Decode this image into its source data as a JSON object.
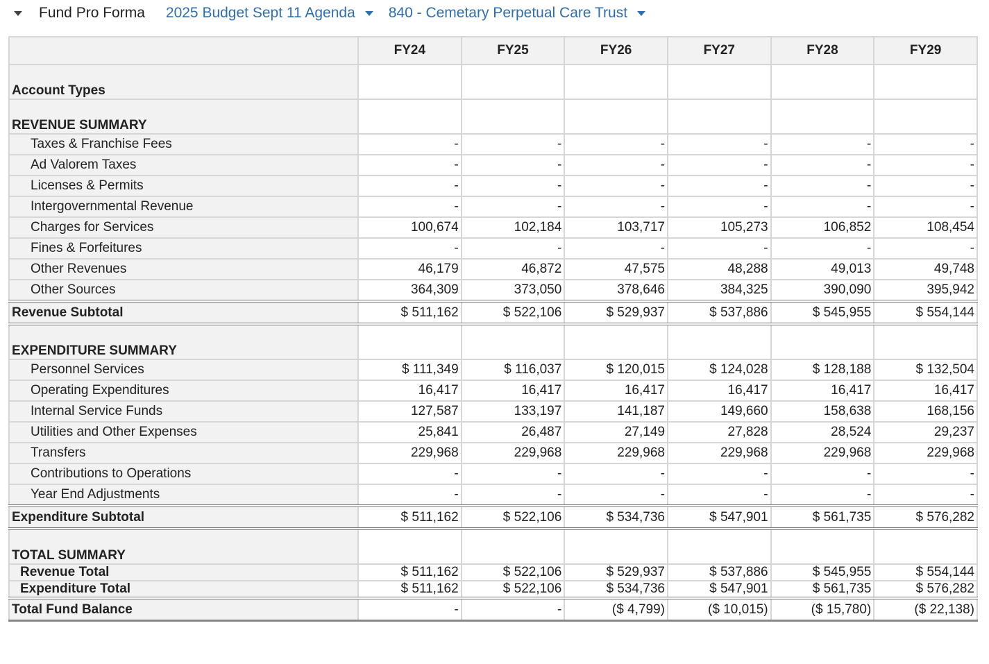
{
  "header": {
    "title": "Fund Pro Forma",
    "scenario": "2025 Budget Sept 11 Agenda",
    "fund": "840 - Cemetary Perpetual Care Trust",
    "accent_color": "#2f6fb0"
  },
  "table": {
    "columns": [
      "FY24",
      "FY25",
      "FY26",
      "FY27",
      "FY28",
      "FY29"
    ],
    "rows": [
      {
        "kind": "sec",
        "label": "Account Types",
        "values": [
          "",
          "",
          "",
          "",
          "",
          ""
        ]
      },
      {
        "kind": "sec",
        "label": "REVENUE SUMMARY",
        "values": [
          "",
          "",
          "",
          "",
          "",
          ""
        ]
      },
      {
        "kind": "item",
        "label": "Taxes & Franchise Fees",
        "values": [
          "-",
          "-",
          "-",
          "-",
          "-",
          "-"
        ]
      },
      {
        "kind": "item",
        "label": "Ad Valorem Taxes",
        "values": [
          "-",
          "-",
          "-",
          "-",
          "-",
          "-"
        ]
      },
      {
        "kind": "item",
        "label": "Licenses & Permits",
        "values": [
          "-",
          "-",
          "-",
          "-",
          "-",
          "-"
        ]
      },
      {
        "kind": "item",
        "label": "Intergovernmental Revenue",
        "values": [
          "-",
          "-",
          "-",
          "-",
          "-",
          "-"
        ]
      },
      {
        "kind": "item",
        "label": "Charges for Services",
        "values": [
          "100,674",
          "102,184",
          "103,717",
          "105,273",
          "106,852",
          "108,454"
        ]
      },
      {
        "kind": "item",
        "label": "Fines & Forfeitures",
        "values": [
          "-",
          "-",
          "-",
          "-",
          "-",
          "-"
        ]
      },
      {
        "kind": "item",
        "label": "Other Revenues",
        "values": [
          "46,179",
          "46,872",
          "47,575",
          "48,288",
          "49,013",
          "49,748"
        ]
      },
      {
        "kind": "item",
        "label": "Other Sources",
        "values": [
          "364,309",
          "373,050",
          "378,646",
          "384,325",
          "390,090",
          "395,942"
        ]
      },
      {
        "kind": "sub",
        "label": "Revenue Subtotal",
        "values": [
          "$ 511,162",
          "$ 522,106",
          "$ 529,937",
          "$ 537,886",
          "$ 545,955",
          "$ 554,144"
        ]
      },
      {
        "kind": "sec",
        "label": "EXPENDITURE SUMMARY",
        "values": [
          "",
          "",
          "",
          "",
          "",
          ""
        ],
        "dbl": true
      },
      {
        "kind": "item",
        "label": "Personnel Services",
        "values": [
          "$ 111,349",
          "$ 116,037",
          "$ 120,015",
          "$ 124,028",
          "$ 128,188",
          "$ 132,504"
        ]
      },
      {
        "kind": "item",
        "label": "Operating Expenditures",
        "values": [
          "16,417",
          "16,417",
          "16,417",
          "16,417",
          "16,417",
          "16,417"
        ]
      },
      {
        "kind": "item",
        "label": "Internal Service Funds",
        "values": [
          "127,587",
          "133,197",
          "141,187",
          "149,660",
          "158,638",
          "168,156"
        ]
      },
      {
        "kind": "item",
        "label": "Utilities and Other Expenses",
        "values": [
          "25,841",
          "26,487",
          "27,149",
          "27,828",
          "28,524",
          "29,237"
        ]
      },
      {
        "kind": "item",
        "label": "Transfers",
        "values": [
          "229,968",
          "229,968",
          "229,968",
          "229,968",
          "229,968",
          "229,968"
        ]
      },
      {
        "kind": "item",
        "label": "Contributions to Operations",
        "values": [
          "-",
          "-",
          "-",
          "-",
          "-",
          "-"
        ]
      },
      {
        "kind": "item",
        "label": "Year End Adjustments",
        "values": [
          "-",
          "-",
          "-",
          "-",
          "-",
          "-"
        ]
      },
      {
        "kind": "sub",
        "label": "Expenditure Subtotal",
        "values": [
          "$ 511,162",
          "$ 522,106",
          "$ 534,736",
          "$ 547,901",
          "$ 561,735",
          "$ 576,282"
        ]
      },
      {
        "kind": "sec",
        "label": "TOTAL SUMMARY",
        "values": [
          "",
          "",
          "",
          "",
          "",
          ""
        ],
        "dbl": true
      },
      {
        "kind": "tot",
        "label": "Revenue Total",
        "values": [
          "$ 511,162",
          "$ 522,106",
          "$ 529,937",
          "$ 537,886",
          "$ 545,955",
          "$ 554,144"
        ]
      },
      {
        "kind": "tot",
        "label": "Expenditure Total",
        "values": [
          "$ 511,162",
          "$ 522,106",
          "$ 534,736",
          "$ 547,901",
          "$ 561,735",
          "$ 576,282"
        ]
      },
      {
        "kind": "sub",
        "label": "Total Fund Balance",
        "values": [
          "-",
          "-",
          "($ 4,799)",
          "($ 10,015)",
          "($ 15,780)",
          "($ 22,138)"
        ]
      }
    ]
  }
}
